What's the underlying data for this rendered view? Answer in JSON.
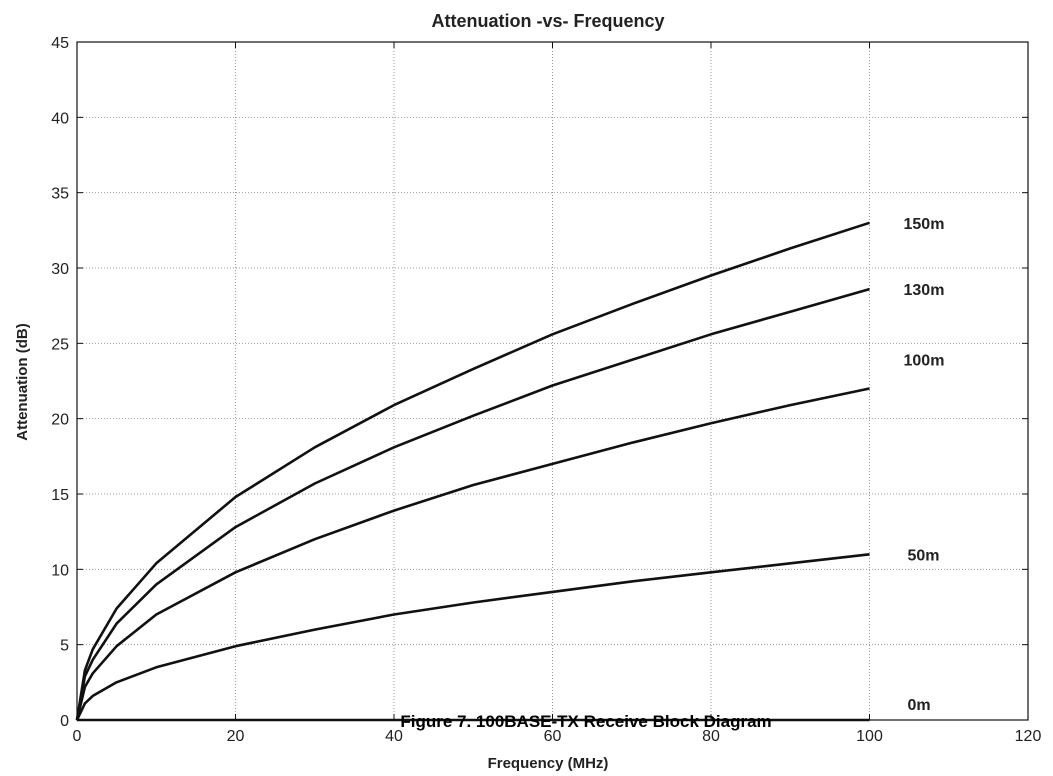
{
  "figure_caption": "Figure 7. 100BASE-TX Receive Block Diagram",
  "chart_data": {
    "type": "line",
    "title": "Attenuation -vs- Frequency",
    "xlabel": "Frequency (MHz)",
    "ylabel": "Attenuation (dB)",
    "xlim": [
      0,
      120
    ],
    "ylim": [
      0,
      45
    ],
    "xticks": [
      0,
      20,
      40,
      60,
      80,
      100,
      120
    ],
    "yticks": [
      0,
      5,
      10,
      15,
      20,
      25,
      30,
      35,
      40,
      45
    ],
    "grid": true,
    "x": [
      0,
      1,
      2,
      5,
      10,
      20,
      30,
      40,
      50,
      60,
      70,
      80,
      90,
      100
    ],
    "series": [
      {
        "name": "0m",
        "values": [
          0,
          0,
          0,
          0,
          0,
          0,
          0,
          0,
          0,
          0,
          0,
          0,
          0,
          0
        ]
      },
      {
        "name": "50m",
        "values": [
          0,
          1.1,
          1.6,
          2.5,
          3.5,
          4.9,
          6.0,
          7.0,
          7.8,
          8.5,
          9.2,
          9.8,
          10.4,
          11.0
        ]
      },
      {
        "name": "100m",
        "values": [
          0,
          2.2,
          3.1,
          4.9,
          7.0,
          9.8,
          12.0,
          13.9,
          15.6,
          17.0,
          18.4,
          19.7,
          20.9,
          22.0
        ]
      },
      {
        "name": "130m",
        "values": [
          0,
          2.9,
          4.0,
          6.4,
          9.0,
          12.8,
          15.7,
          18.1,
          20.2,
          22.2,
          23.9,
          25.6,
          27.1,
          28.6
        ]
      },
      {
        "name": "150m",
        "values": [
          0,
          3.3,
          4.7,
          7.4,
          10.4,
          14.8,
          18.1,
          20.9,
          23.3,
          25.6,
          27.6,
          29.5,
          31.3,
          33.0
        ]
      }
    ]
  }
}
